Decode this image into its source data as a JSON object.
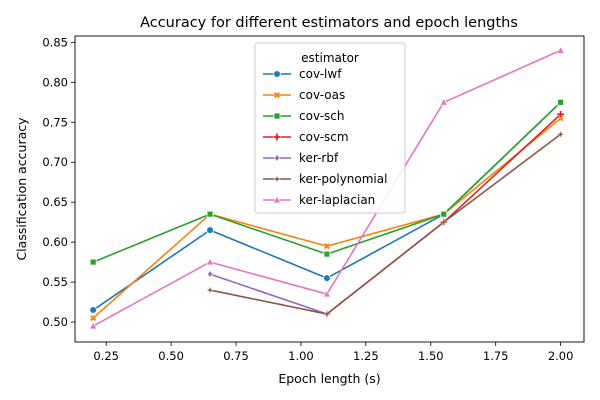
{
  "chart_data": {
    "type": "line",
    "title": "Accuracy for different estimators and epoch lengths",
    "xlabel": "Epoch length (s)",
    "ylabel": "Classification accuracy",
    "xlim": [
      0.13,
      2.09
    ],
    "ylim": [
      0.475,
      0.858
    ],
    "xticks": [
      0.25,
      0.5,
      0.75,
      1.0,
      1.25,
      1.5,
      1.75,
      2.0
    ],
    "xtick_labels": [
      "0.25",
      "0.50",
      "0.75",
      "1.00",
      "1.25",
      "1.50",
      "1.75",
      "2.00"
    ],
    "yticks": [
      0.5,
      0.55,
      0.6,
      0.65,
      0.7,
      0.75,
      0.8,
      0.85
    ],
    "ytick_labels": [
      "0.50",
      "0.55",
      "0.60",
      "0.65",
      "0.70",
      "0.75",
      "0.80",
      "0.85"
    ],
    "grid": false,
    "legend": {
      "title": "estimator",
      "placement": "top-center"
    },
    "series": [
      {
        "name": "cov-lwf",
        "color": "#1f77b4",
        "marker": "circle",
        "x": [
          0.2,
          0.65,
          1.1,
          1.55,
          2.0
        ],
        "y": [
          0.515,
          0.615,
          0.555,
          0.635,
          0.775
        ]
      },
      {
        "name": "cov-oas",
        "color": "#ff7f0e",
        "marker": "x",
        "x": [
          0.2,
          0.65,
          1.1,
          1.55,
          2.0
        ],
        "y": [
          0.505,
          0.635,
          0.595,
          0.635,
          0.755
        ]
      },
      {
        "name": "cov-sch",
        "color": "#2ca02c",
        "marker": "square",
        "x": [
          0.2,
          0.65,
          1.1,
          1.55,
          2.0
        ],
        "y": [
          0.575,
          0.635,
          0.585,
          0.635,
          0.775
        ]
      },
      {
        "name": "cov-scm",
        "color": "#d62728",
        "marker": "plus",
        "x": [
          1.1,
          1.55,
          2.0
        ],
        "y": [
          0.51,
          0.625,
          0.76
        ]
      },
      {
        "name": "ker-rbf",
        "color": "#9467bd",
        "marker": "diamond",
        "x": [
          0.65,
          1.1
        ],
        "y": [
          0.56,
          0.51
        ]
      },
      {
        "name": "ker-polynomial",
        "color": "#8c564b",
        "marker": "star",
        "x": [
          0.65,
          1.1,
          1.55,
          2.0
        ],
        "y": [
          0.54,
          0.51,
          0.625,
          0.735
        ]
      },
      {
        "name": "ker-laplacian",
        "color": "#e377c2",
        "marker": "triangle",
        "x": [
          0.2,
          0.65,
          1.1,
          1.55,
          2.0
        ],
        "y": [
          0.495,
          0.575,
          0.535,
          0.775,
          0.84
        ]
      }
    ]
  }
}
